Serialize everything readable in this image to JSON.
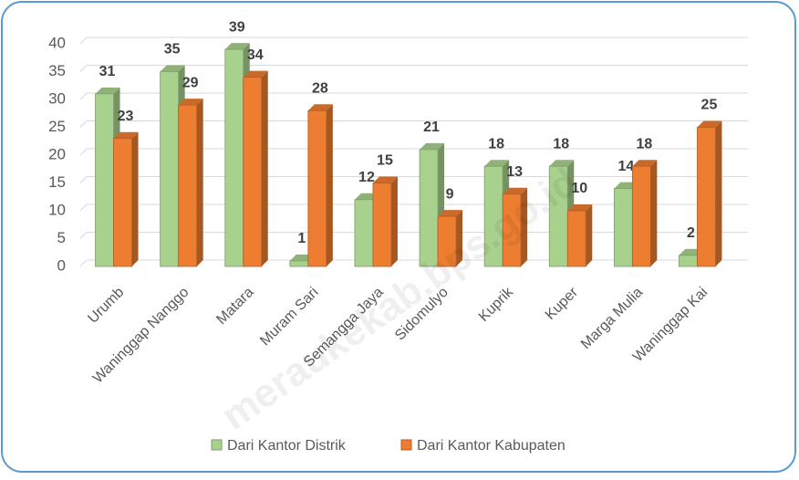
{
  "chart_data": {
    "type": "bar3d",
    "categories": [
      "Urumb",
      "Waninggap Nanggo",
      "Matara",
      "Muram Sari",
      "Semangga Jaya",
      "Sidomulyo",
      "Kuprik",
      "Kuper",
      "Marga Mulia",
      "Waninggap Kai"
    ],
    "series": [
      {
        "name": "Dari Kantor Distrik",
        "color": "#a9d18e",
        "values": [
          31,
          35,
          39,
          1,
          12,
          21,
          18,
          18,
          14,
          2
        ]
      },
      {
        "name": "Dari Kantor Kabupaten",
        "color": "#ed7d31",
        "values": [
          23,
          29,
          34,
          28,
          15,
          9,
          13,
          10,
          18,
          25
        ]
      }
    ],
    "ylim": [
      0,
      40
    ],
    "yticks": [
      0,
      5,
      10,
      15,
      20,
      25,
      30,
      35,
      40
    ],
    "grid": true,
    "legend": "bottom",
    "watermark": "meraukekab.bps.go.id"
  }
}
